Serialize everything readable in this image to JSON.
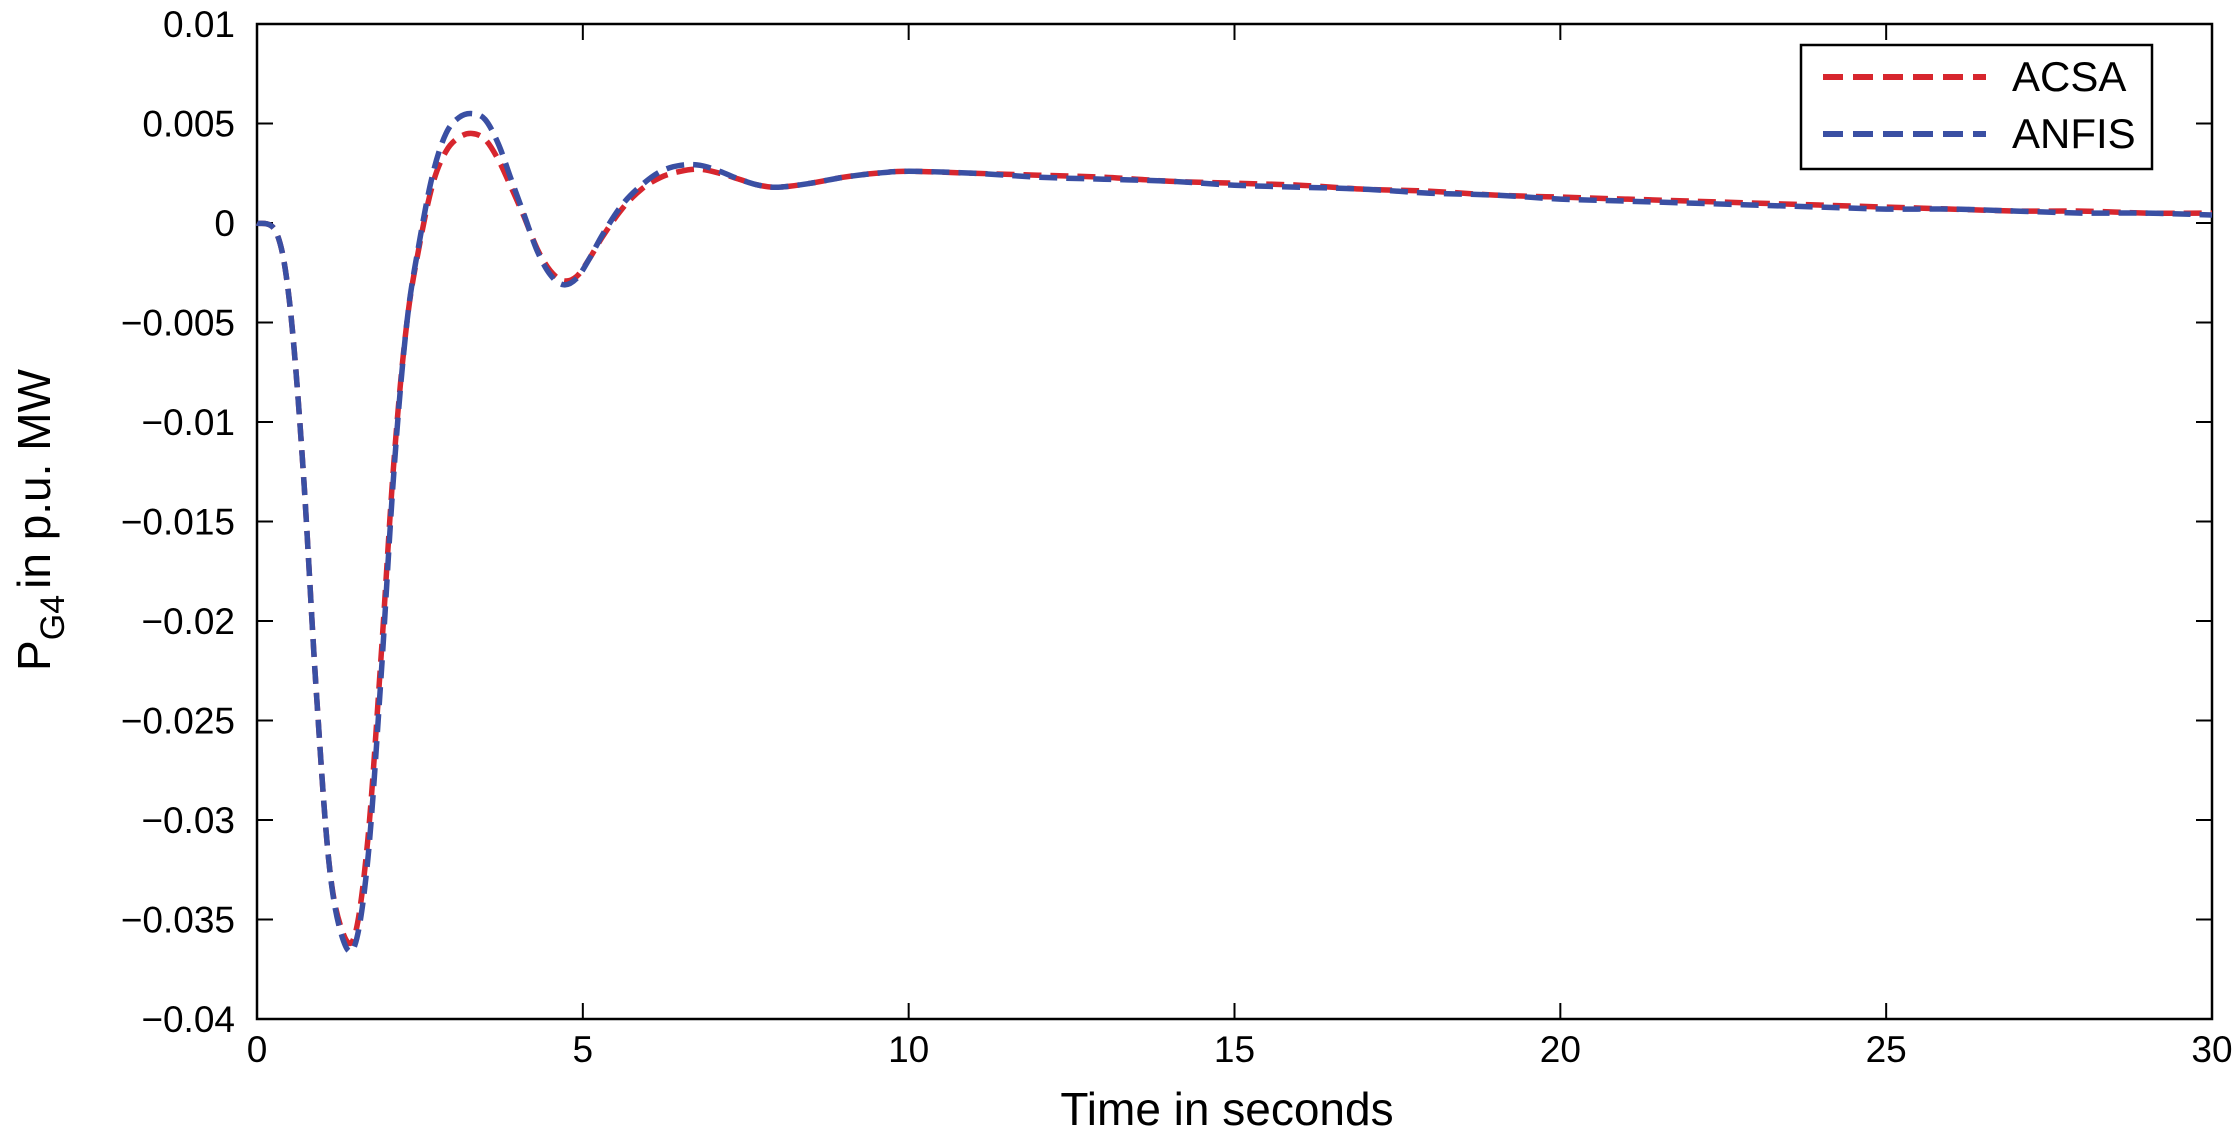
{
  "chart_data": {
    "type": "line",
    "xlabel": "Time in seconds",
    "ylabel": {
      "main": "P",
      "subscript": "G4",
      "rest": "in p.u. MW"
    },
    "xlim": [
      0,
      30
    ],
    "ylim": [
      -0.04,
      0.01
    ],
    "xticks": [
      0,
      5,
      10,
      15,
      20,
      25,
      30
    ],
    "xtick_labels": [
      "0",
      "5",
      "10",
      "15",
      "20",
      "25",
      "30"
    ],
    "yticks": [
      0.01,
      0.005,
      0,
      -0.005,
      -0.01,
      -0.015,
      -0.02,
      -0.025,
      -0.03,
      -0.035,
      -0.04
    ],
    "ytick_labels": [
      "0.01",
      "0.005",
      "0",
      "−0.005",
      "−0.01",
      "−0.015",
      "−0.02",
      "−0.025",
      "−0.03",
      "−0.035",
      "−0.04"
    ],
    "grid": false,
    "legend_position": "top-right",
    "series": [
      {
        "name": "ACSA",
        "color": "#d7262e",
        "style": "dashed",
        "x": [
          0,
          0.3,
          0.5,
          0.7,
          0.9,
          1.1,
          1.3,
          1.5,
          1.7,
          1.9,
          2.1,
          2.3,
          2.5,
          2.7,
          2.9,
          3.1,
          3.3,
          3.5,
          3.7,
          3.9,
          4.1,
          4.3,
          4.5,
          4.7,
          4.9,
          5.1,
          5.3,
          5.6,
          5.9,
          6.2,
          6.5,
          6.8,
          7.1,
          7.4,
          7.7,
          8.0,
          8.5,
          9.0,
          9.5,
          10.0,
          11,
          12,
          13,
          14,
          15,
          16,
          17,
          18,
          19,
          20,
          21,
          22,
          23,
          24,
          25,
          26,
          27,
          28,
          29,
          30
        ],
        "y": [
          0,
          -0.0005,
          -0.004,
          -0.012,
          -0.023,
          -0.032,
          -0.0355,
          -0.0358,
          -0.031,
          -0.022,
          -0.012,
          -0.005,
          -0.001,
          0.002,
          0.0036,
          0.0043,
          0.0045,
          0.0042,
          0.0032,
          0.0018,
          0.0003,
          -0.0013,
          -0.0024,
          -0.0029,
          -0.0027,
          -0.0018,
          -0.0007,
          0.0007,
          0.0017,
          0.0023,
          0.0026,
          0.0027,
          0.0025,
          0.0022,
          0.0019,
          0.0018,
          0.002,
          0.0023,
          0.0025,
          0.0026,
          0.0025,
          0.0024,
          0.0023,
          0.0021,
          0.002,
          0.0019,
          0.0017,
          0.0016,
          0.0014,
          0.0013,
          0.0012,
          0.0011,
          0.001,
          0.0009,
          0.0008,
          0.0007,
          0.0006,
          0.0006,
          0.0005,
          0.0005
        ]
      },
      {
        "name": "ANFIS",
        "color": "#3a4fa3",
        "style": "dashed",
        "x": [
          0,
          0.3,
          0.5,
          0.7,
          0.9,
          1.1,
          1.3,
          1.5,
          1.7,
          1.9,
          2.1,
          2.3,
          2.5,
          2.7,
          2.9,
          3.1,
          3.3,
          3.5,
          3.7,
          3.9,
          4.1,
          4.3,
          4.5,
          4.7,
          4.9,
          5.1,
          5.3,
          5.6,
          5.9,
          6.2,
          6.5,
          6.8,
          7.1,
          7.4,
          7.7,
          8.0,
          8.5,
          9.0,
          9.5,
          10.0,
          11,
          12,
          13,
          14,
          15,
          16,
          17,
          18,
          19,
          20,
          21,
          22,
          23,
          24,
          25,
          26,
          27,
          28,
          29,
          30
        ],
        "y": [
          0,
          -0.0005,
          -0.004,
          -0.012,
          -0.023,
          -0.032,
          -0.0358,
          -0.0363,
          -0.032,
          -0.023,
          -0.0125,
          -0.005,
          -0.0008,
          0.0025,
          0.0045,
          0.0053,
          0.0055,
          0.0052,
          0.004,
          0.0022,
          0.0004,
          -0.0014,
          -0.0026,
          -0.0031,
          -0.0028,
          -0.0018,
          -0.0006,
          0.0009,
          0.0019,
          0.0026,
          0.0029,
          0.0029,
          0.0026,
          0.0022,
          0.0019,
          0.0018,
          0.002,
          0.0023,
          0.0025,
          0.0026,
          0.0025,
          0.0023,
          0.0022,
          0.0021,
          0.0019,
          0.0018,
          0.0017,
          0.0015,
          0.0014,
          0.0012,
          0.0011,
          0.001,
          0.0009,
          0.0008,
          0.0007,
          0.0007,
          0.0006,
          0.0005,
          0.0005,
          0.0004
        ]
      }
    ]
  }
}
